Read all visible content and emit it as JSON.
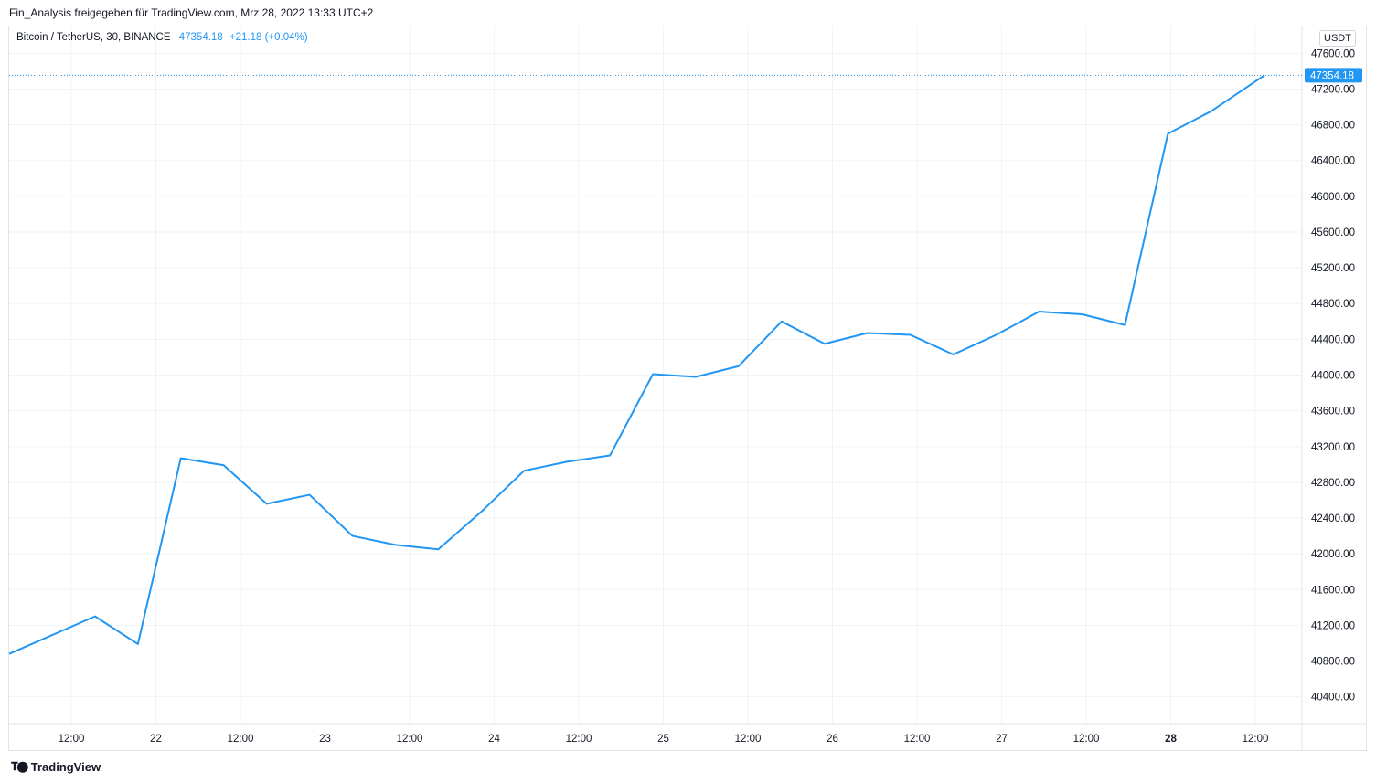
{
  "header": {
    "text": "Fin_Analysis freigegeben für TradingView.com, Mrz 28, 2022 13:33 UTC+2"
  },
  "legend": {
    "symbol": "Bitcoin / TetherUS, 30, BINANCE",
    "value": "47354.18",
    "change": "+21.18 (+0.04%)"
  },
  "unit": "USDT",
  "footer": {
    "logo_icon": "tradingview-logo-icon",
    "brand": "TradingView"
  },
  "colors": {
    "line": "#2196f3",
    "grid": "#f0f3fa",
    "axis_text": "#131722"
  },
  "chart_data": {
    "type": "line",
    "title": "Bitcoin / TetherUS, 30, BINANCE",
    "xlabel": "",
    "ylabel": "USDT",
    "ylim": [
      40100,
      47900
    ],
    "grid": true,
    "last_price_label": "47354.18",
    "y_ticks": [
      "47600.00",
      "47200.00",
      "46800.00",
      "46400.00",
      "46000.00",
      "45600.00",
      "45200.00",
      "44800.00",
      "44400.00",
      "44000.00",
      "43600.00",
      "43200.00",
      "42800.00",
      "42400.00",
      "42000.00",
      "41600.00",
      "41200.00",
      "40800.00",
      "40400.00"
    ],
    "x_tick_labels": [
      "12:00",
      "22",
      "12:00",
      "23",
      "12:00",
      "24",
      "12:00",
      "25",
      "12:00",
      "26",
      "12:00",
      "27",
      "12:00",
      "28",
      "12:00"
    ],
    "series": [
      {
        "x": [
          "21 06:00",
          "21 18:00",
          "22 00:00",
          "22 06:00",
          "22 12:00",
          "22 18:00",
          "23 00:00",
          "23 06:00",
          "23 12:00",
          "23 18:00",
          "24 00:00",
          "24 06:00",
          "24 12:00",
          "24 18:00",
          "25 00:00",
          "25 06:00",
          "25 12:00",
          "25 18:00",
          "26 00:00",
          "26 06:00",
          "26 12:00",
          "26 18:00",
          "27 00:00",
          "27 06:00",
          "27 12:00",
          "27 18:00",
          "28 00:00",
          "28 06:00",
          "28 13:30"
        ],
        "values": [
          40880,
          41300,
          40990,
          43070,
          42990,
          42560,
          42660,
          42200,
          42100,
          42050,
          42470,
          42930,
          43030,
          43100,
          44010,
          43980,
          44100,
          44600,
          44350,
          44470,
          44450,
          44230,
          44450,
          44710,
          44680,
          44560,
          46700,
          46950,
          47354.18
        ]
      }
    ]
  }
}
